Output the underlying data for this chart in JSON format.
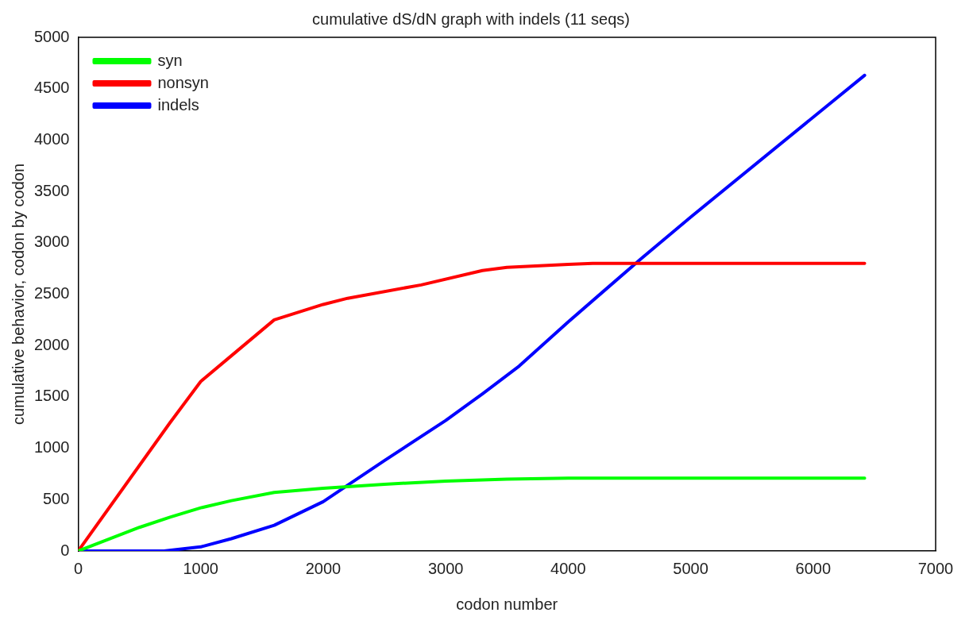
{
  "chart_data": {
    "type": "line",
    "title": "cumulative dS/dN graph with indels (11 seqs)",
    "xlabel": "codon number",
    "ylabel": "cumulative behavior, codon by codon",
    "xlim": [
      0,
      7000
    ],
    "xticks": [
      0,
      1000,
      2000,
      3000,
      4000,
      5000,
      6000,
      7000
    ],
    "ylim": [
      0,
      5000
    ],
    "yticks": [
      0,
      500,
      1000,
      1500,
      2000,
      2500,
      3000,
      3500,
      4000,
      4500,
      5000
    ],
    "grid": false,
    "legend": "top left",
    "marker": "none",
    "line_style": "solid",
    "series": [
      {
        "name": "syn",
        "color": "#00ff00",
        "x": [
          0,
          500,
          750,
          1000,
          1250,
          1600,
          2000,
          2500,
          3000,
          3500,
          4000,
          6420
        ],
        "values": [
          0,
          230,
          330,
          420,
          490,
          570,
          610,
          650,
          680,
          700,
          710,
          710
        ]
      },
      {
        "name": "nonsyn",
        "color": "#ff0000",
        "x": [
          0,
          750,
          1000,
          1250,
          1600,
          2000,
          2200,
          2800,
          3300,
          3500,
          4000,
          4200,
          6420
        ],
        "values": [
          0,
          1250,
          1650,
          1900,
          2250,
          2400,
          2460,
          2590,
          2730,
          2760,
          2790,
          2800,
          2800
        ]
      },
      {
        "name": "indels",
        "color": "#0000ff",
        "x": [
          0,
          700,
          1000,
          1250,
          1600,
          2000,
          2200,
          2500,
          3000,
          3300,
          3600,
          4000,
          4600,
          5000,
          6420
        ],
        "values": [
          0,
          0,
          40,
          120,
          250,
          480,
          640,
          880,
          1270,
          1530,
          1800,
          2230,
          2850,
          3250,
          4630
        ]
      }
    ]
  }
}
